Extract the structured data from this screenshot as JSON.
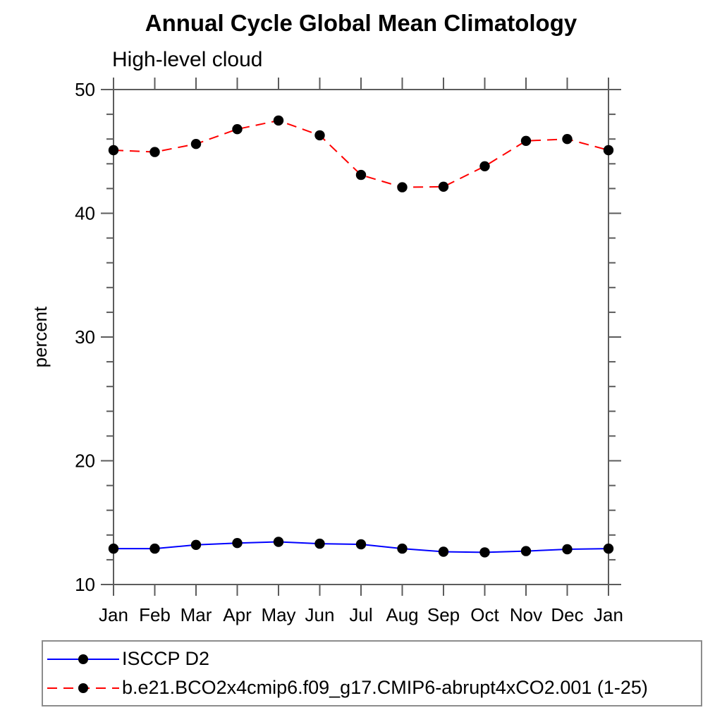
{
  "chart_data": {
    "type": "line",
    "title": "Annual Cycle Global Mean Climatology",
    "subtitle": "High-level cloud",
    "ylabel": "percent",
    "xlabel": "",
    "ylim": [
      10,
      50
    ],
    "y_major_ticks": [
      10,
      20,
      30,
      40,
      50
    ],
    "y_minor_step": 2,
    "grid": false,
    "legend_position": "bottom-left",
    "x_categories": [
      "Jan",
      "Feb",
      "Mar",
      "Apr",
      "May",
      "Jun",
      "Jul",
      "Aug",
      "Sep",
      "Oct",
      "Nov",
      "Dec",
      "Jan"
    ],
    "series": [
      {
        "name": "ISCCP D2",
        "line_style": "solid",
        "color": "#0000ff",
        "marker": "filled-circle",
        "marker_color": "#000000",
        "values": [
          12.9,
          12.9,
          13.2,
          13.35,
          13.45,
          13.3,
          13.25,
          12.9,
          12.65,
          12.6,
          12.7,
          12.85,
          12.9
        ]
      },
      {
        "name": "b.e21.BCO2x4cmip6.f09_g17.CMIP6-abrupt4xCO2.001 (1-25)",
        "line_style": "dashed",
        "color": "#ff0000",
        "marker": "filled-circle",
        "marker_color": "#000000",
        "values": [
          45.1,
          44.95,
          45.6,
          46.8,
          47.5,
          46.3,
          43.1,
          42.1,
          42.15,
          43.8,
          45.85,
          46.0,
          45.1
        ]
      }
    ]
  }
}
